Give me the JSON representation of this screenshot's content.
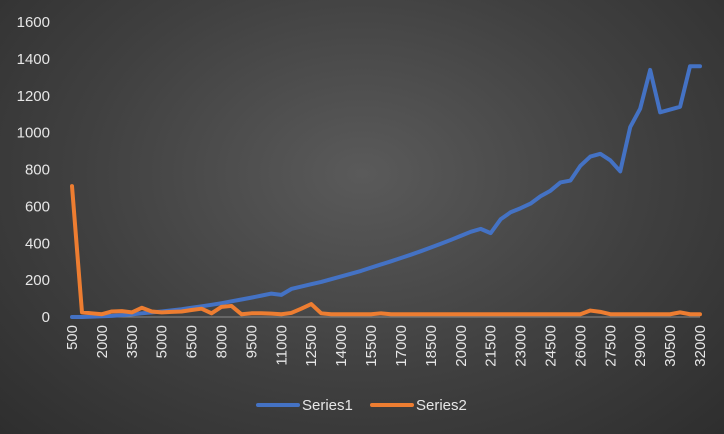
{
  "chart_data": {
    "type": "line",
    "title": "",
    "xlabel": "",
    "ylabel": "",
    "ylim": [
      0,
      1600
    ],
    "yticks": [
      0,
      200,
      400,
      600,
      800,
      1000,
      1200,
      1400,
      1600
    ],
    "x": [
      500,
      1000,
      1500,
      2000,
      2500,
      3000,
      3500,
      4000,
      4500,
      5000,
      5500,
      6000,
      6500,
      7000,
      7500,
      8000,
      8500,
      9000,
      9500,
      10000,
      10500,
      11000,
      11500,
      12000,
      12500,
      13000,
      13500,
      14000,
      14500,
      15000,
      15500,
      16000,
      16500,
      17000,
      17500,
      18000,
      18500,
      19000,
      19500,
      20000,
      20500,
      21000,
      21500,
      22000,
      22500,
      23000,
      23500,
      24000,
      24500,
      25000,
      25500,
      26000,
      26500,
      27000,
      27500,
      28000,
      28500,
      29000,
      29500,
      30000,
      30500,
      31000,
      31500,
      32000
    ],
    "xtick_labels": [
      "500",
      "2000",
      "3500",
      "5000",
      "6500",
      "8000",
      "9500",
      "11000",
      "12500",
      "14000",
      "15500",
      "17000",
      "18500",
      "20000",
      "21500",
      "23000",
      "24500",
      "26000",
      "27500",
      "29000",
      "30500",
      "32000"
    ],
    "series": [
      {
        "name": "Series1",
        "color": "#4472c4",
        "values": [
          0,
          0,
          2,
          4,
          6,
          10,
          14,
          20,
          25,
          30,
          36,
          42,
          50,
          58,
          66,
          75,
          85,
          95,
          105,
          116,
          127,
          120,
          152,
          165,
          178,
          190,
          205,
          220,
          235,
          250,
          268,
          285,
          302,
          320,
          338,
          357,
          377,
          397,
          418,
          440,
          462,
          478,
          455,
          530,
          568,
          590,
          615,
          655,
          685,
          730,
          740,
          820,
          870,
          885,
          850,
          790,
          1030,
          1130,
          1340,
          1110,
          1125,
          1140,
          1360,
          1360
        ]
      },
      {
        "name": "Series2",
        "color": "#ed7d31",
        "values": [
          710,
          25,
          20,
          15,
          30,
          32,
          25,
          50,
          30,
          25,
          28,
          30,
          38,
          45,
          20,
          55,
          60,
          15,
          20,
          20,
          18,
          15,
          22,
          45,
          70,
          20,
          15,
          15,
          15,
          15,
          15,
          20,
          15,
          15,
          15,
          15,
          15,
          15,
          15,
          15,
          15,
          15,
          15,
          15,
          15,
          15,
          15,
          15,
          15,
          15,
          15,
          15,
          35,
          28,
          15,
          15,
          15,
          15,
          15,
          15,
          15,
          25,
          15,
          15
        ]
      }
    ],
    "grid": false,
    "legend_position": "bottom"
  }
}
